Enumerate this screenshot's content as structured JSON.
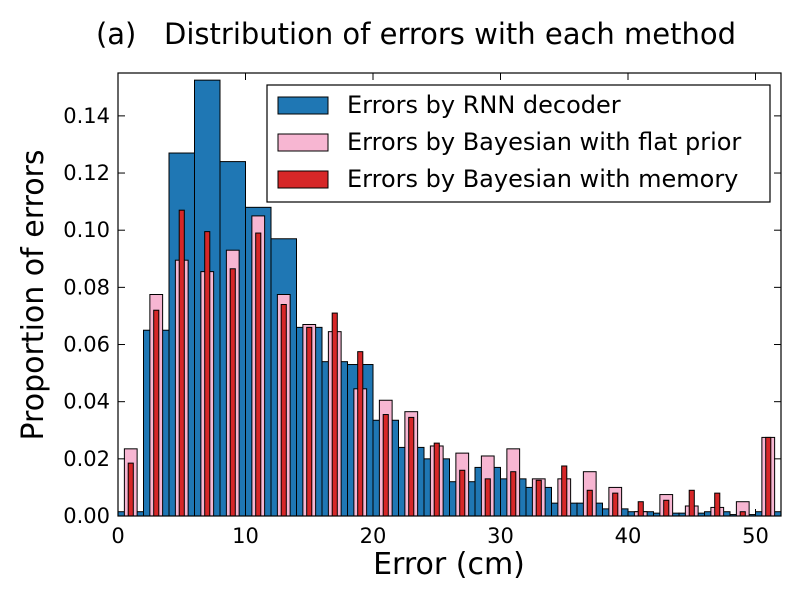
{
  "chart_data": {
    "type": "bar",
    "title": "(a)   Distribution of errors with each method",
    "xlabel": "Error (cm)",
    "ylabel": "Proportion of errors",
    "xlim": [
      0,
      52
    ],
    "ylim": [
      0,
      0.155
    ],
    "xticks": [
      "0",
      "10",
      "20",
      "30",
      "40",
      "50"
    ],
    "yticks": [
      "0.00",
      "0.02",
      "0.04",
      "0.06",
      "0.08",
      "0.10",
      "0.12",
      "0.14"
    ],
    "grid": false,
    "legend_position": "top-right",
    "series": [
      {
        "name": "Errors by RNN decoder",
        "color": "#1f77b4",
        "bin_width": 2,
        "x": [
          1,
          3,
          5,
          7,
          9,
          11,
          13,
          15,
          17,
          19,
          21,
          23,
          25,
          27,
          29,
          31,
          33,
          35,
          37,
          39,
          41,
          43,
          45,
          47,
          49,
          51
        ],
        "values": [
          0.0015,
          0.065,
          0.127,
          0.1525,
          0.124,
          0.108,
          0.097,
          0.066,
          0.054,
          0.053,
          0.0335,
          0.024,
          0.02,
          0.012,
          0.017,
          0.013,
          0.01,
          0.0045,
          0.0045,
          0.0025,
          0.0015,
          0.001,
          0.001,
          0.0015,
          0.0005,
          0.0015
        ]
      },
      {
        "name": "Errors by Bayesian with flat prior",
        "color": "#f7b6d2",
        "bin_width": 1,
        "x": [
          1,
          3,
          5,
          7,
          9,
          11,
          13,
          15,
          17,
          19,
          21,
          23,
          25,
          27,
          29,
          31,
          33,
          35,
          37,
          39,
          41,
          43,
          45,
          47,
          49,
          51
        ],
        "values": [
          0.0235,
          0.0775,
          0.0895,
          0.0855,
          0.093,
          0.105,
          0.0775,
          0.067,
          0.0645,
          0.0445,
          0.0405,
          0.0365,
          0.0245,
          0.022,
          0.021,
          0.0235,
          0.013,
          0.013,
          0.0155,
          0.01,
          0.0015,
          0.0075,
          0.0035,
          0.003,
          0.005,
          0.0275
        ]
      },
      {
        "name": "Errors by Bayesian with memory",
        "color": "#d62728",
        "bin_width": 0.4,
        "x": [
          1,
          3,
          5,
          7,
          9,
          11,
          13,
          15,
          17,
          19,
          21,
          23,
          25,
          27,
          29,
          31,
          33,
          35,
          37,
          39,
          41,
          43,
          45,
          47,
          49,
          51
        ],
        "values": [
          0.0185,
          0.072,
          0.107,
          0.0995,
          0.0865,
          0.099,
          0.074,
          0.066,
          0.071,
          0.0575,
          0.0355,
          0.0345,
          0.0255,
          0.016,
          0.013,
          0.0155,
          0.0125,
          0.0175,
          0.009,
          0.008,
          0.005,
          0.0055,
          0.009,
          0.008,
          0.0015,
          0.0275
        ]
      }
    ]
  }
}
